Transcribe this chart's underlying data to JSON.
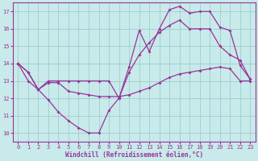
{
  "xlabel": "Windchill (Refroidissement éolien,°C)",
  "xlim": [
    -0.5,
    23.5
  ],
  "ylim": [
    9.5,
    17.5
  ],
  "xticks": [
    0,
    1,
    2,
    3,
    4,
    5,
    6,
    7,
    8,
    9,
    10,
    11,
    12,
    13,
    14,
    15,
    16,
    17,
    18,
    19,
    20,
    21,
    22,
    23
  ],
  "yticks": [
    10,
    11,
    12,
    13,
    14,
    15,
    16,
    17
  ],
  "bg_color": "#c8eaea",
  "line_color": "#993399",
  "grid_color": "#9ecece",
  "line1_y": [
    14.0,
    13.5,
    12.5,
    11.9,
    11.2,
    10.7,
    10.3,
    10.0,
    10.0,
    11.3,
    12.0,
    13.8,
    15.9,
    14.7,
    16.0,
    17.1,
    17.3,
    16.9,
    17.0,
    17.0,
    16.1,
    15.9,
    13.9,
    13.1
  ],
  "line2_y": [
    14.0,
    13.0,
    12.5,
    12.9,
    12.9,
    12.4,
    12.3,
    12.2,
    12.1,
    12.1,
    12.1,
    12.2,
    12.4,
    12.6,
    12.9,
    13.2,
    13.4,
    13.5,
    13.6,
    13.7,
    13.8,
    13.7,
    13.0,
    13.0
  ],
  "line3_y": [
    14.0,
    13.5,
    12.5,
    13.0,
    13.0,
    13.0,
    13.0,
    13.0,
    13.0,
    13.0,
    12.0,
    13.5,
    14.5,
    15.2,
    15.8,
    16.2,
    16.5,
    16.0,
    16.0,
    16.0,
    15.0,
    14.5,
    14.2,
    13.1
  ]
}
